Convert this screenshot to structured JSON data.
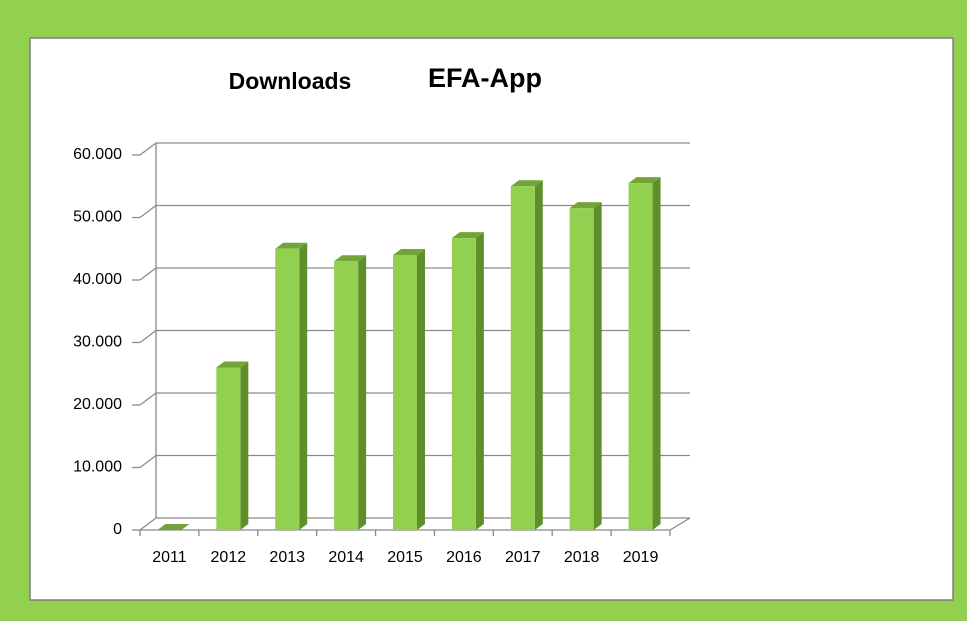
{
  "chart_data": {
    "type": "bar3d",
    "title": "Downloads",
    "subtitle": "EFA-App",
    "categories": [
      "2011",
      "2012",
      "2013",
      "2014",
      "2015",
      "2016",
      "2017",
      "2018",
      "2019"
    ],
    "values": [
      0,
      26000,
      45000,
      43000,
      44000,
      46700,
      55000,
      51500,
      55500
    ],
    "color": "#92d050",
    "ylim": [
      0,
      60000
    ],
    "yticks": [
      0,
      {
        "value": 10000,
        "label": "10.000"
      },
      {
        "value": 20000,
        "label": "20.000"
      },
      {
        "value": 30000,
        "label": "30.000"
      },
      {
        "value": 40000,
        "label": "40.000"
      },
      {
        "value": 50000,
        "label": "50.000"
      },
      {
        "value": 60000,
        "label": "60.000"
      }
    ],
    "grid": true
  }
}
